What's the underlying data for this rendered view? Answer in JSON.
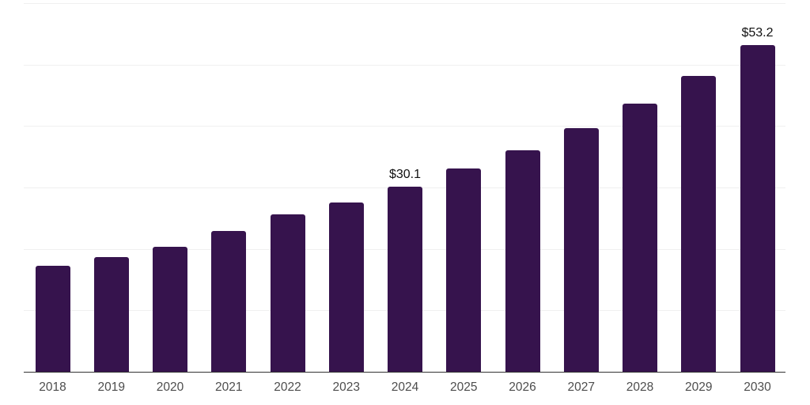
{
  "chart_data": {
    "type": "bar",
    "title": "",
    "xlabel": "",
    "ylabel": "",
    "categories": [
      "2018",
      "2019",
      "2020",
      "2021",
      "2022",
      "2023",
      "2024",
      "2025",
      "2026",
      "2027",
      "2028",
      "2029",
      "2030"
    ],
    "values": [
      17.2,
      18.7,
      20.4,
      22.9,
      25.6,
      27.6,
      30.1,
      33.1,
      36.1,
      39.7,
      43.7,
      48.2,
      53.2
    ],
    "labeled_points": [
      {
        "category": "2024",
        "label": "$30.1"
      },
      {
        "category": "2030",
        "label": "$53.2"
      }
    ],
    "ylim": [
      0,
      60
    ],
    "grid_step": 10,
    "grid": "horizontal-only",
    "legend_position": "none",
    "y_tick_labels_visible": false,
    "colors": {
      "bar": "#36134d",
      "axis_line": "#333333",
      "gridline": "#f0f0f0",
      "tick_label": "#4d4d4d",
      "data_label": "#111111",
      "background": "#ffffff"
    }
  }
}
